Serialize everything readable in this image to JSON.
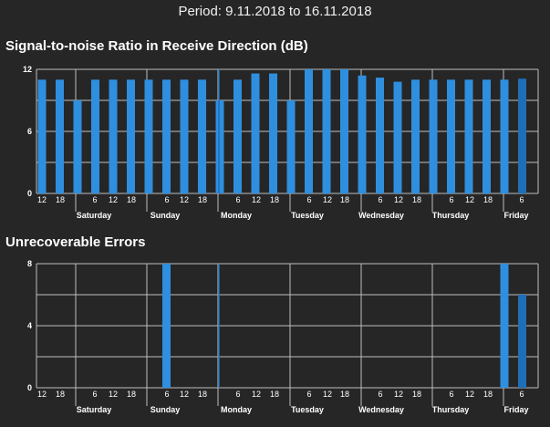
{
  "header": {
    "period": "Period: 9.11.2018 to 16.11.2018"
  },
  "colors": {
    "bar": "#2f8fdf",
    "bar_dark": "#1e6fb8",
    "grid": "#bdbdbd",
    "background": "#262626",
    "marker": "#1e6fb8"
  },
  "chart_data": [
    {
      "type": "bar",
      "title": "Signal-to-noise Ratio in Receive Direction (dB)",
      "ylim": [
        0,
        12
      ],
      "yticks": [
        "0",
        "6",
        "12"
      ],
      "xlabel": "",
      "ylabel": "",
      "x_tick_labels": [
        "12",
        "18",
        "6",
        "12",
        "18",
        "6",
        "12",
        "18",
        "6",
        "12",
        "18",
        "6",
        "12",
        "18",
        "6",
        "12",
        "18",
        "6",
        "12",
        "18",
        "6"
      ],
      "day_labels": [
        "Saturday",
        "Sunday",
        "Monday",
        "Tuesday",
        "Wednesday",
        "Thursday",
        "Friday"
      ],
      "values": [
        11,
        11,
        9,
        11,
        11,
        11,
        11,
        11,
        11,
        11,
        9,
        11,
        11.6,
        11.6,
        9,
        12,
        12,
        12,
        11.4,
        11.2,
        10.8,
        11,
        11,
        11,
        11,
        11,
        11,
        11.1
      ]
    },
    {
      "type": "bar",
      "title": "Unrecoverable Errors",
      "ylim": [
        0,
        8
      ],
      "yticks": [
        "0",
        "4",
        "8"
      ],
      "xlabel": "",
      "ylabel": "",
      "x_tick_labels": [
        "12",
        "18",
        "6",
        "12",
        "18",
        "6",
        "12",
        "18",
        "6",
        "12",
        "18",
        "6",
        "12",
        "18",
        "6",
        "12",
        "18",
        "6",
        "12",
        "18",
        "6"
      ],
      "day_labels": [
        "Saturday",
        "Sunday",
        "Monday",
        "Tuesday",
        "Wednesday",
        "Thursday",
        "Friday"
      ],
      "values": [
        0,
        0,
        0,
        0,
        0,
        0,
        0,
        8,
        0,
        0,
        0,
        0,
        0,
        0,
        0,
        0,
        0,
        0,
        0,
        0,
        0,
        0,
        0,
        0,
        0,
        0,
        8,
        6
      ]
    }
  ]
}
